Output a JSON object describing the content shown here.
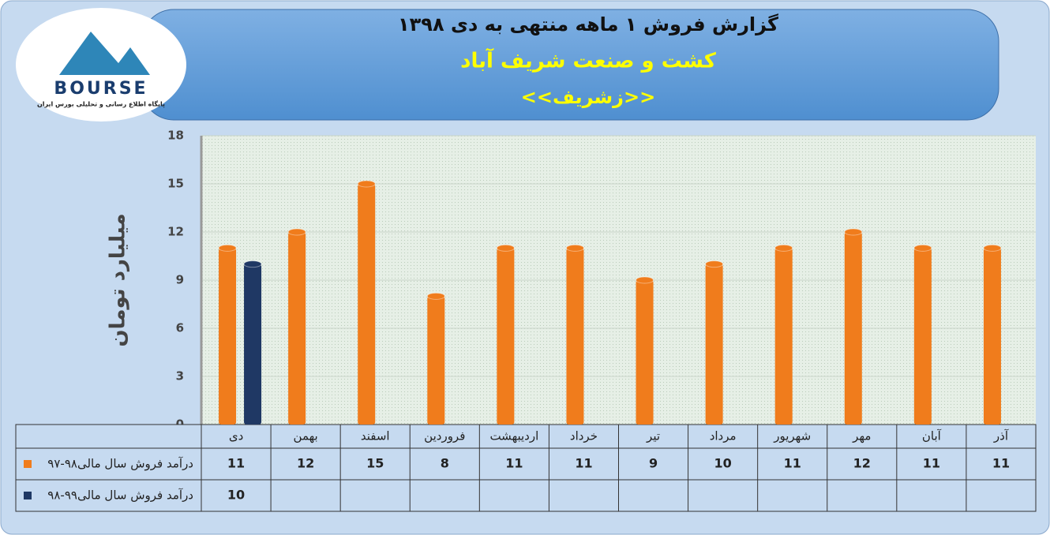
{
  "logo": {
    "name": "BOURSE",
    "tagline": "پایگاه اطلاع رسانی و تحلیلی بورس ایران"
  },
  "chart_data": {
    "type": "bar",
    "title": "گزارش فروش ۱ ماهه منتهی به دی ۱۳۹۸",
    "subtitle": "کشت و صنعت شریف آباد",
    "symbol": "<<زشریف>>",
    "y_label": "میلیارد تومان",
    "categories": [
      "دی",
      "بهمن",
      "اسفند",
      "فروردین",
      "اردیبهشت",
      "خرداد",
      "تیر",
      "مرداد",
      "شهریور",
      "مهر",
      "آبان",
      "آذر"
    ],
    "series": [
      {
        "name": "درآمد فروش سال مالی۹۸-۹۷",
        "color": "#f07c1c",
        "values": [
          11,
          12,
          15,
          8,
          11,
          11,
          9,
          10,
          11,
          12,
          11,
          11
        ]
      },
      {
        "name": "درآمد فروش سال مالی۹۹-۹۸",
        "color": "#1f3864",
        "values": [
          10,
          null,
          null,
          null,
          null,
          null,
          null,
          null,
          null,
          null,
          null,
          null
        ]
      }
    ],
    "ylim": [
      0,
      18
    ],
    "yticks": [
      0,
      3,
      6,
      9,
      12,
      15,
      18
    ],
    "grid": true
  }
}
